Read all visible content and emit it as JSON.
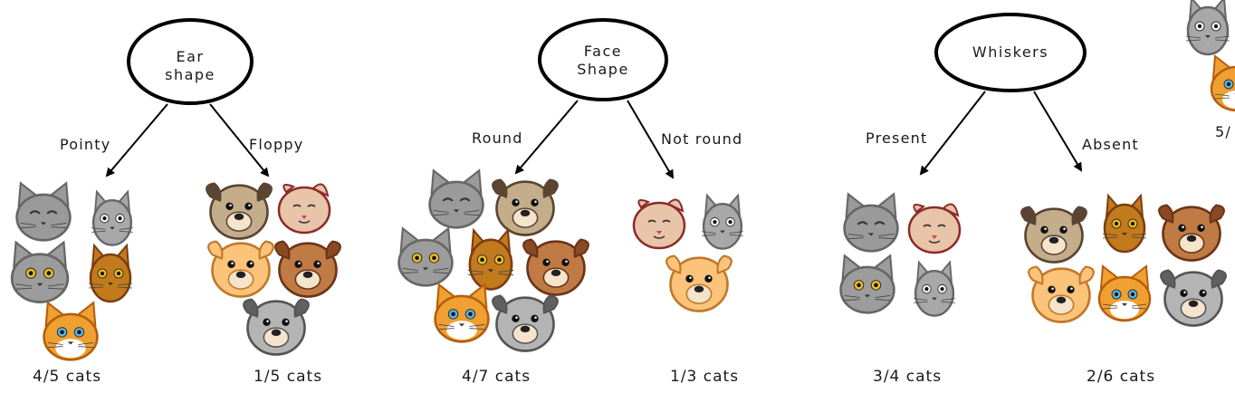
{
  "splits": [
    {
      "node": "Ear\nshape",
      "left_branch": "Pointy",
      "right_branch": "Floppy",
      "left_count": "4/5 cats",
      "right_count": "1/5 cats"
    },
    {
      "node": "Face\nShape",
      "left_branch": "Round",
      "right_branch": "Not round",
      "left_count": "4/7 cats",
      "right_count": "1/3 cats"
    },
    {
      "node": "Whiskers",
      "left_branch": "Present",
      "right_branch": "Absent",
      "left_count": "3/4 cats",
      "right_count": "2/6 cats"
    }
  ],
  "partial_label": "5/",
  "animal_kinds": [
    "gray-cat",
    "gray-kitten",
    "gray-longhair-cat",
    "brown-cat",
    "orange-kitten",
    "pug-dog",
    "fold-cat",
    "yellow-dog",
    "brown-dog",
    "gray-dog"
  ]
}
